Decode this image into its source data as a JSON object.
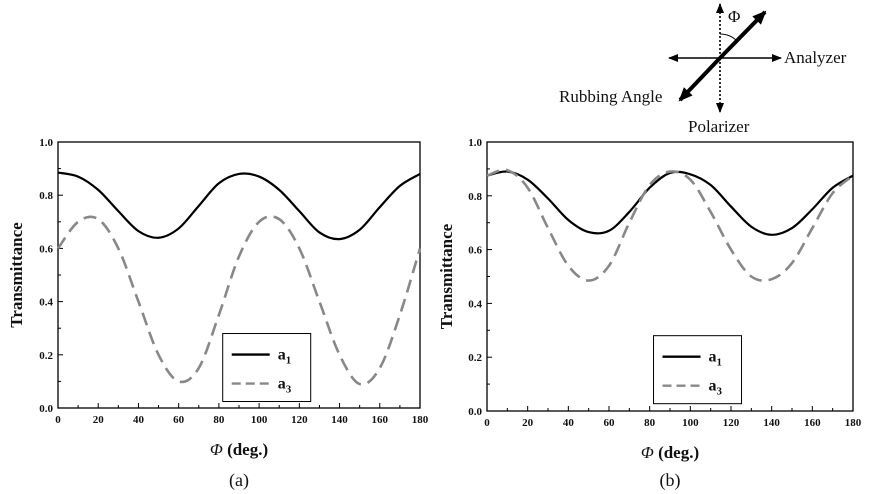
{
  "figure": {
    "diagram": {
      "angle_symbol": "Φ",
      "analyzer_label": "Analyzer",
      "rubbing_label": "Rubbing Angle",
      "polarizer_label": "Polarizer"
    }
  },
  "chart_data": [
    {
      "type": "line",
      "panel_label": "(a)",
      "xlabel_symbol": "Φ",
      "xlabel_text": " (deg.)",
      "ylabel": "Transmittance",
      "xlim": [
        0,
        180
      ],
      "ylim": [
        0,
        1.0
      ],
      "xticks": [
        0,
        20,
        40,
        60,
        80,
        100,
        120,
        140,
        160,
        180
      ],
      "yticks": [
        0.0,
        0.2,
        0.4,
        0.6,
        0.8,
        1.0
      ],
      "ytick_labels": [
        "0.0",
        "0.2",
        "0.4",
        "0.6",
        "0.8",
        "1.0"
      ],
      "x": [
        0,
        10,
        20,
        30,
        40,
        50,
        60,
        70,
        80,
        90,
        100,
        110,
        120,
        130,
        140,
        150,
        160,
        170,
        180
      ],
      "series": [
        {
          "name": "a",
          "subscript": "1",
          "color": "#000000",
          "dash": "solid",
          "values": [
            0.885,
            0.87,
            0.82,
            0.74,
            0.665,
            0.64,
            0.675,
            0.76,
            0.845,
            0.88,
            0.87,
            0.82,
            0.74,
            0.66,
            0.635,
            0.67,
            0.755,
            0.835,
            0.88
          ]
        },
        {
          "name": "a",
          "subscript": "3",
          "color": "#888888",
          "dash": "dashed",
          "values": [
            0.6,
            0.7,
            0.71,
            0.6,
            0.4,
            0.2,
            0.1,
            0.15,
            0.35,
            0.57,
            0.7,
            0.71,
            0.6,
            0.4,
            0.2,
            0.09,
            0.15,
            0.35,
            0.6
          ]
        }
      ],
      "legend_position": "bottom-right"
    },
    {
      "type": "line",
      "panel_label": "(b)",
      "xlabel_symbol": "Φ",
      "xlabel_text": " (deg.)",
      "ylabel": "Transmittance",
      "xlim": [
        0,
        180
      ],
      "ylim": [
        0,
        1.0
      ],
      "xticks": [
        0,
        20,
        40,
        60,
        80,
        100,
        120,
        140,
        160,
        180
      ],
      "yticks": [
        0.0,
        0.2,
        0.4,
        0.6,
        0.8,
        1.0
      ],
      "ytick_labels": [
        "0.0",
        "0.2",
        "0.4",
        "0.6",
        "0.8",
        "1.0"
      ],
      "x": [
        0,
        10,
        20,
        30,
        40,
        50,
        60,
        70,
        80,
        90,
        100,
        110,
        120,
        130,
        140,
        150,
        160,
        170,
        180
      ],
      "series": [
        {
          "name": "a",
          "subscript": "1",
          "color": "#000000",
          "dash": "solid",
          "values": [
            0.875,
            0.89,
            0.86,
            0.79,
            0.71,
            0.665,
            0.67,
            0.74,
            0.83,
            0.885,
            0.88,
            0.84,
            0.76,
            0.685,
            0.655,
            0.68,
            0.75,
            0.83,
            0.875
          ]
        },
        {
          "name": "a",
          "subscript": "3",
          "color": "#888888",
          "dash": "dashed",
          "values": [
            0.875,
            0.895,
            0.83,
            0.68,
            0.54,
            0.485,
            0.54,
            0.7,
            0.84,
            0.89,
            0.86,
            0.74,
            0.6,
            0.5,
            0.49,
            0.55,
            0.68,
            0.81,
            0.875
          ]
        }
      ],
      "legend_position": "bottom-right"
    }
  ]
}
